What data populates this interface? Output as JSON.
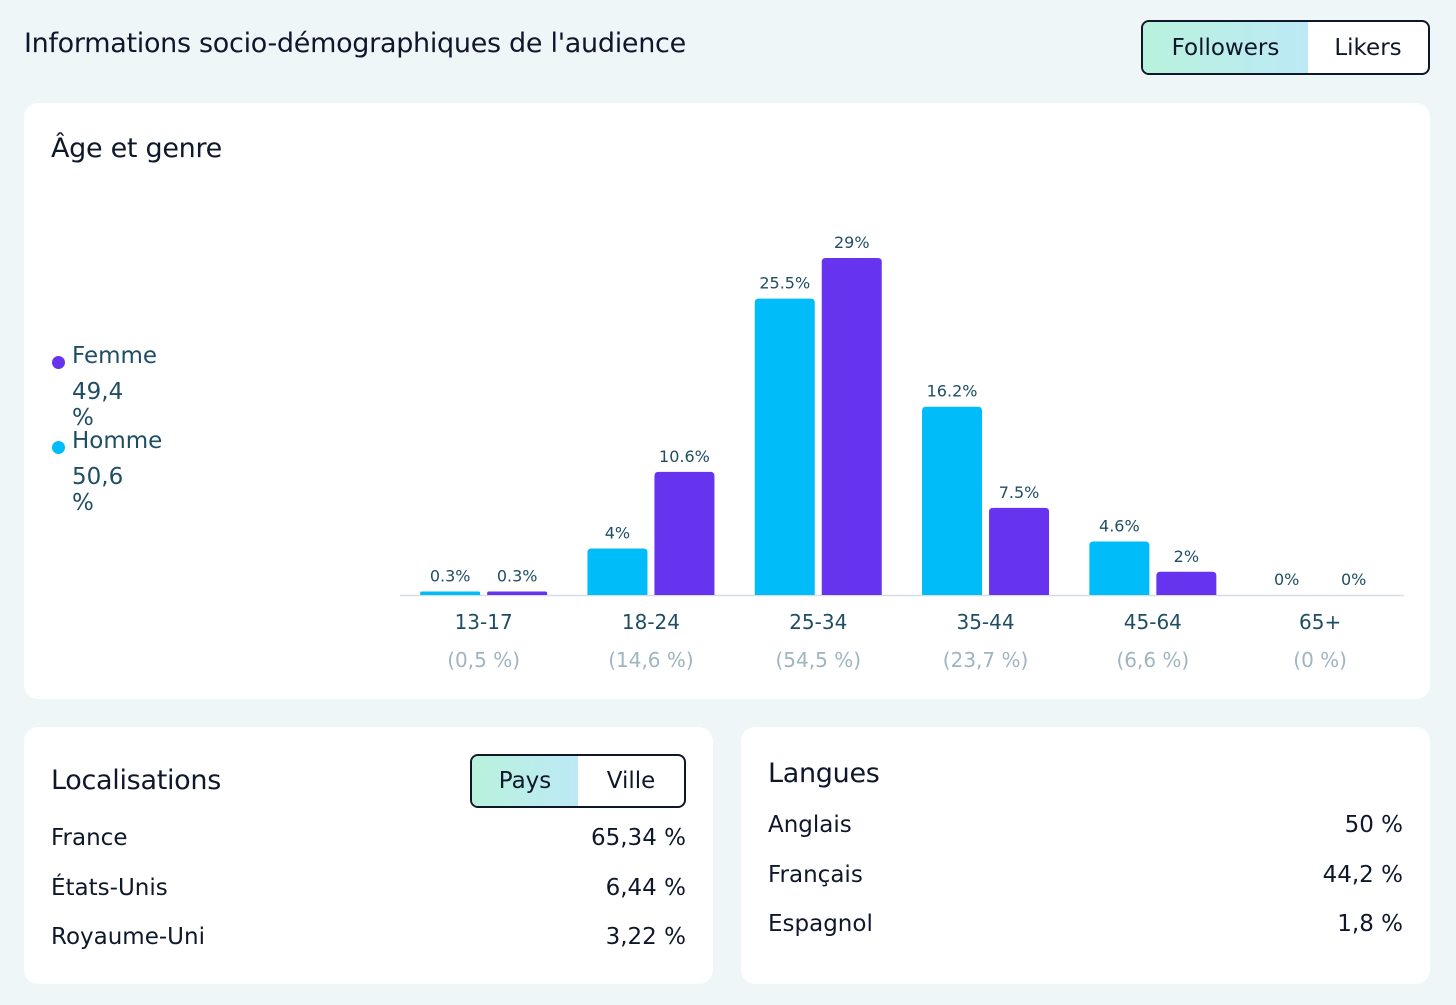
{
  "header": {
    "title": "Informations socio-démographiques de l'audience",
    "toggle": {
      "options": [
        "Followers",
        "Likers"
      ],
      "selected": "Followers"
    }
  },
  "age_gender": {
    "title": "Âge et genre",
    "legend": [
      {
        "label": "Femme",
        "pct": "49,4 %",
        "color": "#6633ee"
      },
      {
        "label": "Homme",
        "pct": "50,6 %",
        "color": "#00bcf8"
      }
    ]
  },
  "chart_data": {
    "type": "bar",
    "categories": [
      "13-17",
      "18-24",
      "25-34",
      "35-44",
      "45-64",
      "65+"
    ],
    "category_totals": [
      "(0,5 %)",
      "(14,6 %)",
      "(54,5 %)",
      "(23,7 %)",
      "(6,6 %)",
      "(0 %)"
    ],
    "series": [
      {
        "name": "Homme",
        "color": "#00bcf8",
        "values": [
          0.3,
          4,
          25.5,
          16.2,
          4.6,
          0
        ],
        "labels": [
          "0.3%",
          "4%",
          "25.5%",
          "16.2%",
          "4.6%",
          "0%"
        ]
      },
      {
        "name": "Femme",
        "color": "#6633ee",
        "values": [
          0.3,
          10.6,
          29,
          7.5,
          2,
          0
        ],
        "labels": [
          "0.3%",
          "10.6%",
          "29%",
          "7.5%",
          "2%",
          "0%"
        ]
      }
    ],
    "ylim": [
      0,
      29
    ],
    "grid": false
  },
  "locations": {
    "title": "Localisations",
    "toggle": {
      "options": [
        "Pays",
        "Ville"
      ],
      "selected": "Pays"
    },
    "rows": [
      {
        "label": "France",
        "value": "65,34 %"
      },
      {
        "label": "États-Unis",
        "value": "6,44 %"
      },
      {
        "label": "Royaume-Uni",
        "value": "3,22 %"
      }
    ]
  },
  "languages": {
    "title": "Langues",
    "rows": [
      {
        "label": "Anglais",
        "value": "50 %"
      },
      {
        "label": "Français",
        "value": "44,2 %"
      },
      {
        "label": "Espagnol",
        "value": "1,8 %"
      }
    ]
  }
}
